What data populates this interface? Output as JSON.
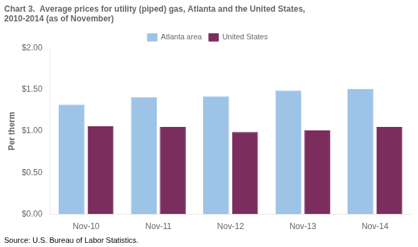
{
  "chart_data": {
    "type": "bar",
    "title": [
      "Chart 3.  Average prices for utility (piped) gas, Atlanta and the United States,",
      "2010-2014 (as of November)"
    ],
    "ylabel": "Per therm",
    "annotation": "Source: U.S. Bureau of Labor Statistics.",
    "categories": [
      "Nov-10",
      "Nov-11",
      "Nov-12",
      "Nov-13",
      "Nov-14"
    ],
    "series": [
      {
        "name": "Atlanta area",
        "color": "#9DC3E6",
        "values": [
          1.32,
          1.41,
          1.42,
          1.49,
          1.51
        ]
      },
      {
        "name": "United States",
        "color": "#7B2D5E",
        "values": [
          1.06,
          1.05,
          0.99,
          1.01,
          1.05
        ]
      }
    ],
    "ylim": [
      0.0,
      2.0
    ],
    "yticks": [
      {
        "value": 0.0,
        "label": "$0.00"
      },
      {
        "value": 0.5,
        "label": "$0.50"
      },
      {
        "value": 1.0,
        "label": "$1.00"
      },
      {
        "value": 1.5,
        "label": "$1.50"
      },
      {
        "value": 2.0,
        "label": "$2.00"
      }
    ],
    "grid": false,
    "legend": "top"
  }
}
